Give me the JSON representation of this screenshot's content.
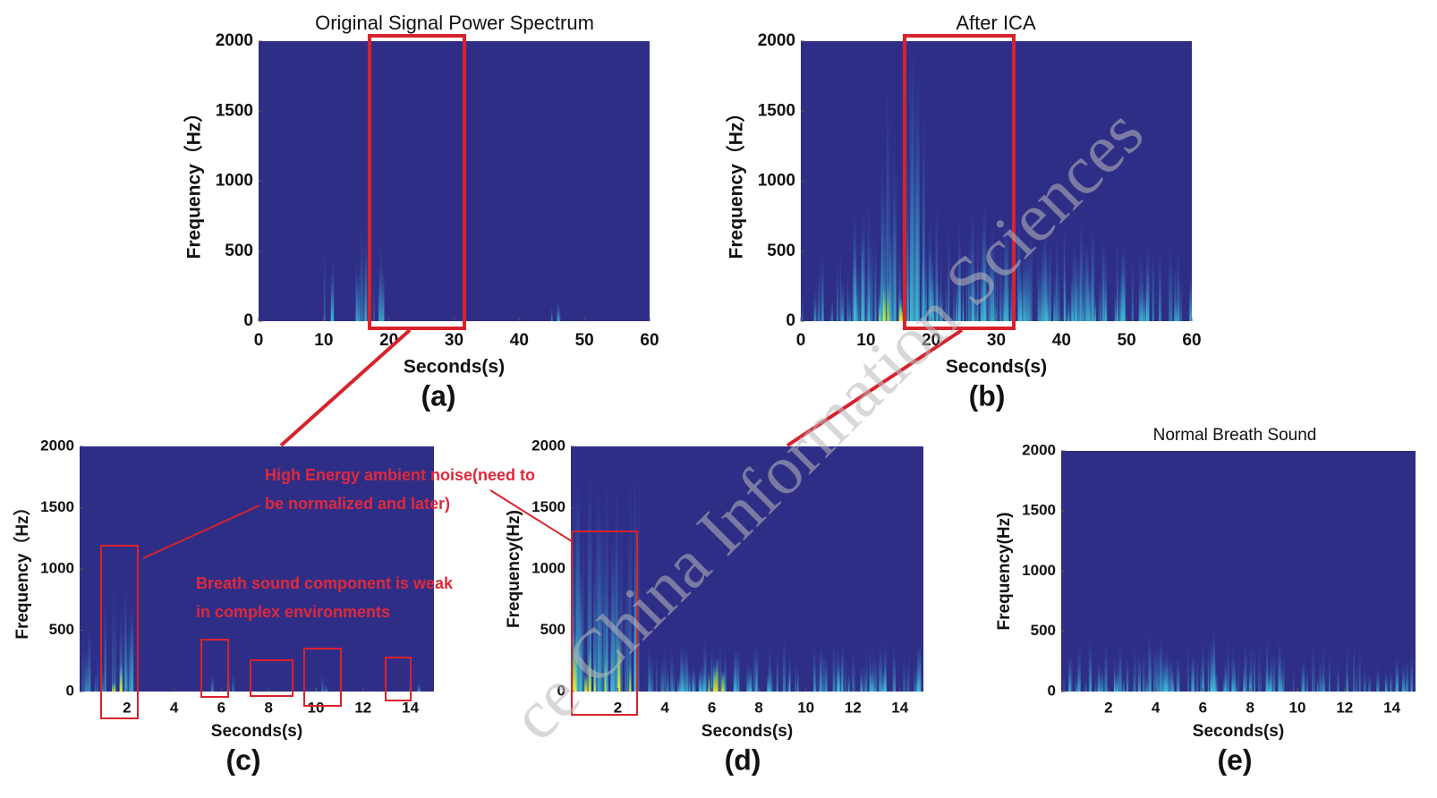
{
  "watermark": "ce China Information Sciences",
  "chart_data": [
    {
      "type": "spectrogram",
      "title": "Original Signal Power Spectrum",
      "xlabel": "Seconds(s)",
      "ylabel": "Frequency（Hz）",
      "panel_label": "(a)",
      "xlim": [
        0,
        60
      ],
      "ylim": [
        0,
        2000
      ],
      "xticks": [
        0,
        10,
        20,
        30,
        40,
        50,
        60
      ],
      "yticks": [
        0,
        500,
        1000,
        1500,
        2000
      ],
      "color": "#2f2e87"
    },
    {
      "type": "spectrogram",
      "title": "After ICA",
      "xlabel": "Seconds(s)",
      "ylabel": "Frequency（Hz）",
      "panel_label": "(b)",
      "xlim": [
        0,
        60
      ],
      "ylim": [
        0,
        2000
      ],
      "xticks": [
        0,
        10,
        20,
        30,
        40,
        50,
        60
      ],
      "yticks": [
        0,
        500,
        1000,
        1500,
        2000
      ],
      "color": "#2f2e87"
    },
    {
      "type": "spectrogram",
      "xlabel": "Seconds(s)",
      "ylabel": "Frequency（Hz）",
      "panel_label": "(c)",
      "xlim": [
        0,
        15
      ],
      "ylim": [
        0,
        2000
      ],
      "xticks": [
        2,
        4,
        6,
        8,
        10,
        12,
        14
      ],
      "yticks": [
        0,
        500,
        1000,
        1500,
        2000
      ],
      "color": "#2f2e87",
      "annotations": [
        "High Energy ambient noise(need to",
        "be normalized and later)",
        "Breath sound component is weak",
        "in complex environments"
      ]
    },
    {
      "type": "spectrogram",
      "xlabel": "Seconds(s)",
      "ylabel": "Frequency(Hz)",
      "panel_label": "(d)",
      "xlim": [
        0,
        15
      ],
      "ylim": [
        0,
        2000
      ],
      "xticks": [
        2,
        4,
        6,
        8,
        10,
        12,
        14
      ],
      "yticks": [
        0,
        500,
        1000,
        1500,
        2000
      ],
      "color": "#2f2e87"
    },
    {
      "type": "spectrogram",
      "title": "Normal Breath Sound",
      "xlabel": "Seconds(s)",
      "ylabel": "Frequency(Hz)",
      "panel_label": "(e)",
      "xlim": [
        0,
        15
      ],
      "ylim": [
        0,
        2000
      ],
      "xticks": [
        2,
        4,
        6,
        8,
        10,
        12,
        14
      ],
      "yticks": [
        0,
        500,
        1000,
        1500,
        2000
      ],
      "color": "#2f2e87"
    }
  ]
}
